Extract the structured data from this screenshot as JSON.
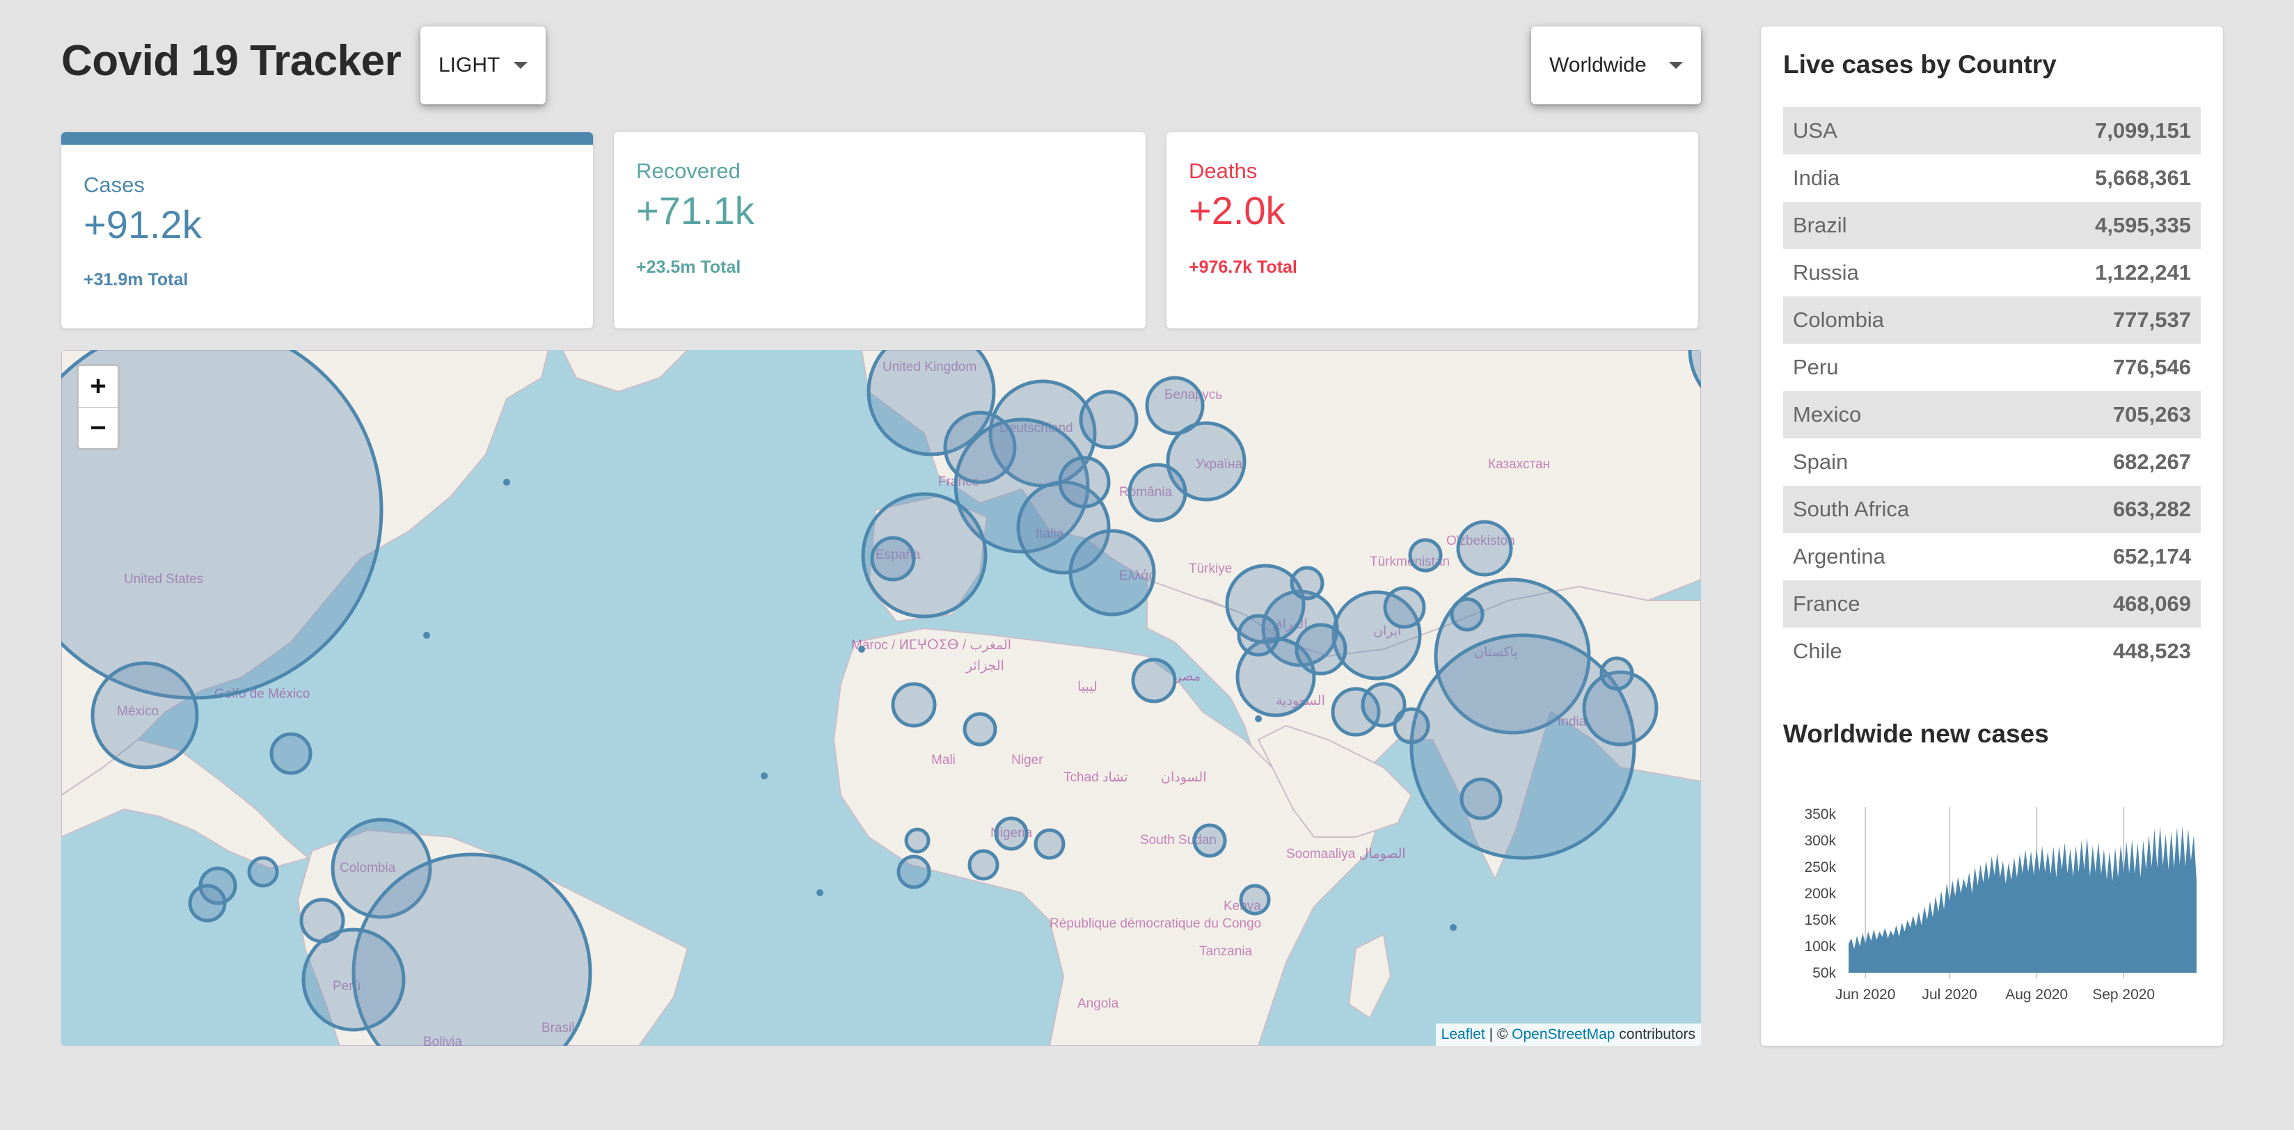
{
  "header": {
    "title": "Covid 19 Tracker",
    "theme_select": "LIGHT",
    "region_select": "Worldwide"
  },
  "cards": {
    "cases": {
      "label": "Cases",
      "value": "+91.2k",
      "total": "+31.9m Total"
    },
    "recovered": {
      "label": "Recovered",
      "value": "+71.1k",
      "total": "+23.5m Total"
    },
    "deaths": {
      "label": "Deaths",
      "value": "+2.0k",
      "total": "+976.7k Total"
    }
  },
  "colors": {
    "accent": "#4d87ad",
    "recovered": "#5aa5a3",
    "deaths": "#ee3a4a",
    "map_water": "#aad3df",
    "map_land": "#f2efe9"
  },
  "map": {
    "zoom_in": "+",
    "zoom_out": "−",
    "attribution": {
      "leaflet": "Leaflet",
      "sep": " | © ",
      "osm": "OpenStreetMap",
      "suffix": " contributors"
    },
    "labels": [
      "United Kingdom",
      "Беларусь",
      "Deutschland",
      "France",
      "Україна",
      "România",
      "España",
      "Italia",
      "Ελλάς",
      "Türkiye",
      "Казахстан",
      "O'zbekiston",
      "Türkmenistan",
      "United States",
      "México",
      "Golfo de México",
      "Maroc / ⵍⵎⵖⵔⵉⴱ / المغرب",
      "الجزائر",
      "ليبيا",
      "مصر",
      "العراق",
      "ایران",
      "پاکستان",
      "India",
      "السعودية",
      "Mali",
      "Niger",
      "Tchad تشاد",
      "السودان",
      "Nigeria",
      "South Sudan",
      "Soomaaliya الصومال",
      "Colombia",
      "Perú",
      "Brasil",
      "Bolivia",
      "République démocratique du Congo",
      "Kenya",
      "Tanzania",
      "Angola"
    ]
  },
  "live_cases": {
    "title": "Live cases by Country",
    "rows": [
      {
        "country": "USA",
        "cases": "7,099,151"
      },
      {
        "country": "India",
        "cases": "5,668,361"
      },
      {
        "country": "Brazil",
        "cases": "4,595,335"
      },
      {
        "country": "Russia",
        "cases": "1,122,241"
      },
      {
        "country": "Colombia",
        "cases": "777,537"
      },
      {
        "country": "Peru",
        "cases": "776,546"
      },
      {
        "country": "Mexico",
        "cases": "705,263"
      },
      {
        "country": "Spain",
        "cases": "682,267"
      },
      {
        "country": "South Africa",
        "cases": "663,282"
      },
      {
        "country": "Argentina",
        "cases": "652,174"
      },
      {
        "country": "France",
        "cases": "468,069"
      },
      {
        "country": "Chile",
        "cases": "448,523"
      }
    ]
  },
  "chart_data": {
    "type": "area",
    "title": "Worldwide new cases",
    "xlabel": "",
    "ylabel": "",
    "y_ticks": [
      "350k",
      "300k",
      "250k",
      "200k",
      "150k",
      "100k",
      "50k"
    ],
    "x_ticks": [
      "Jun 2020",
      "Jul 2020",
      "Aug 2020",
      "Sep 2020"
    ],
    "ylim": [
      50000,
      350000
    ],
    "x_start": "2020-05-26",
    "values": [
      105000,
      115000,
      95000,
      120000,
      100000,
      125000,
      105000,
      128000,
      110000,
      132000,
      112000,
      128000,
      118000,
      135000,
      115000,
      130000,
      120000,
      140000,
      118000,
      145000,
      128000,
      150000,
      135000,
      158000,
      138000,
      165000,
      140000,
      175000,
      150000,
      185000,
      155000,
      195000,
      165000,
      205000,
      170000,
      220000,
      185000,
      225000,
      195000,
      232000,
      200000,
      228000,
      210000,
      240000,
      200000,
      250000,
      215000,
      255000,
      220000,
      262000,
      225000,
      270000,
      235000,
      276000,
      230000,
      262000,
      218000,
      258000,
      225000,
      268000,
      230000,
      275000,
      238000,
      283000,
      240000,
      280000,
      235000,
      285000,
      242000,
      290000,
      240000,
      280000,
      236000,
      288000,
      230000,
      290000,
      245000,
      296000,
      238000,
      285000,
      232000,
      290000,
      240000,
      300000,
      245000,
      306000,
      232000,
      290000,
      240000,
      298000,
      236000,
      284000,
      226000,
      280000,
      222000,
      286000,
      230000,
      292000,
      240000,
      298000,
      238000,
      302000,
      236000,
      296000,
      230000,
      300000,
      245000,
      310000,
      250000,
      322000,
      248000,
      328000,
      252000,
      312000,
      245000,
      318000,
      248000,
      325000,
      255000,
      328000,
      250000,
      322000,
      262000,
      310000,
      225000
    ]
  }
}
